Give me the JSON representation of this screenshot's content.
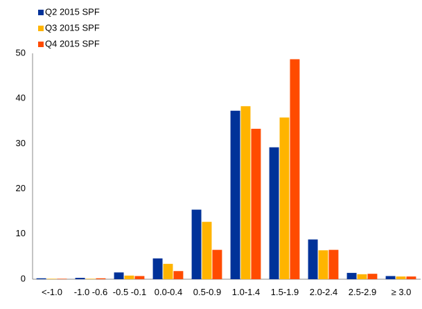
{
  "chart_data": {
    "type": "bar",
    "categories": [
      "<-1.0",
      "-1.0 -0.6",
      "-0.5 -0.1",
      "0.0-0.4",
      "0.5-0.9",
      "1.0-1.4",
      "1.5-1.9",
      "2.0-2.4",
      "2.5-2.9",
      "≥ 3.0"
    ],
    "series": [
      {
        "name": "Q2 2015 SPF",
        "color": "#003299",
        "values": [
          0.2,
          0.3,
          1.5,
          4.6,
          15.4,
          37.3,
          29.2,
          8.8,
          1.4,
          0.7
        ]
      },
      {
        "name": "Q3 2015 SPF",
        "color": "#ffb400",
        "values": [
          0.1,
          0.1,
          0.8,
          3.4,
          12.7,
          38.3,
          35.8,
          6.4,
          1.1,
          0.6
        ]
      },
      {
        "name": "Q4 2015 SPF",
        "color": "#ff4b00",
        "values": [
          0.1,
          0.2,
          0.7,
          1.8,
          6.5,
          33.3,
          48.7,
          6.5,
          1.2,
          0.6
        ]
      }
    ],
    "ylim": [
      0,
      50
    ],
    "yticks": [
      0,
      10,
      20,
      30,
      40,
      50
    ],
    "grid": false,
    "legend": "top-left"
  }
}
